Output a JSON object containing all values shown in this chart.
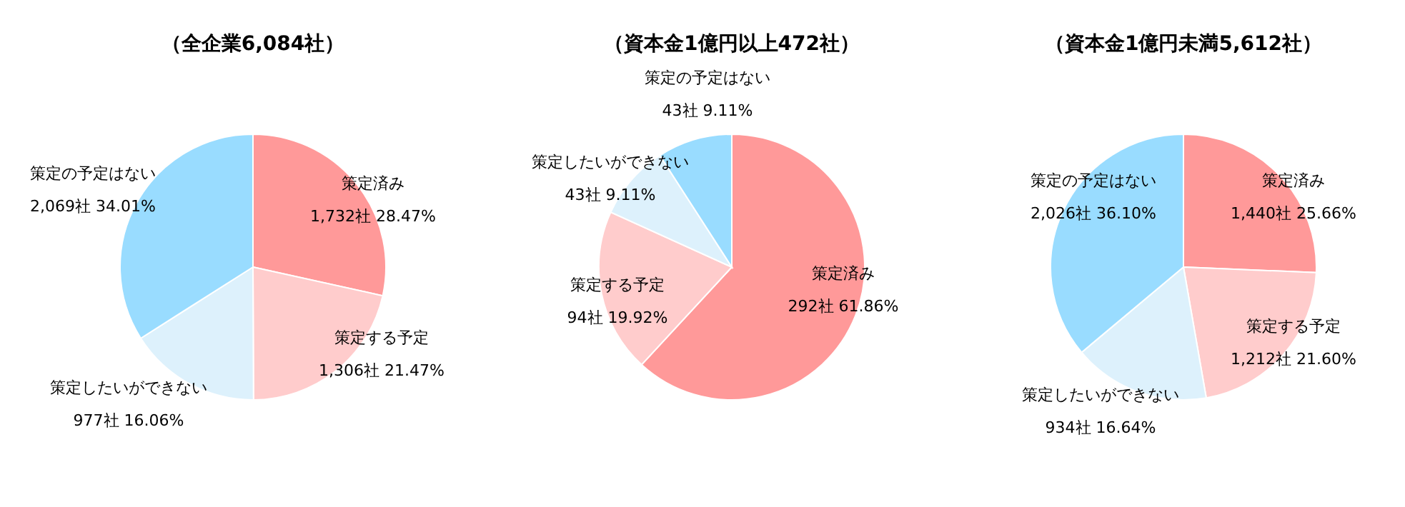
{
  "chart_data": [
    {
      "type": "pie",
      "title": "（全企業6,084社）",
      "categories": [
        "策定済み",
        "策定する予定",
        "策定したいができない",
        "策定の予定はない"
      ],
      "values": [
        1732,
        1306,
        977,
        2069
      ],
      "colors": [
        "#ff9999",
        "#ffcccc",
        "#ddf1fc",
        "#99dcff"
      ],
      "value_labels": [
        "1,732社 28.47%",
        "1,306社 21.47%",
        "977社 16.06%",
        "2,069社 34.01%"
      ]
    },
    {
      "type": "pie",
      "title": "（資本金1億円以上472社）",
      "categories": [
        "策定済み",
        "策定する予定",
        "策定したいができない",
        "策定の予定はない"
      ],
      "values": [
        292,
        94,
        43,
        43
      ],
      "colors": [
        "#ff9999",
        "#ffcccc",
        "#ddf1fc",
        "#99dcff"
      ],
      "value_labels": [
        "292社 61.86%",
        "94社 19.92%",
        "43社 9.11%",
        "43社 9.11%"
      ]
    },
    {
      "type": "pie",
      "title": "（資本金1億円未満5,612社）",
      "categories": [
        "策定済み",
        "策定する予定",
        "策定したいができない",
        "策定の予定はない"
      ],
      "values": [
        1440,
        1212,
        934,
        2026
      ],
      "colors": [
        "#ff9999",
        "#ffcccc",
        "#ddf1fc",
        "#99dcff"
      ],
      "value_labels": [
        "1,440社 25.66%",
        "1,212社 21.60%",
        "934社 16.64%",
        "2,026社 36.10%"
      ]
    }
  ]
}
